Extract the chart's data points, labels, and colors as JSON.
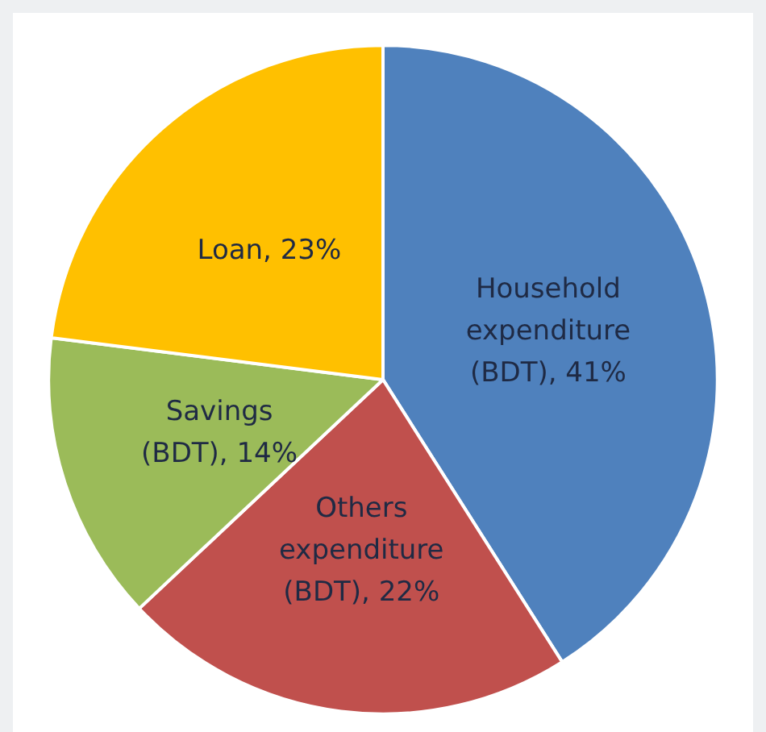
{
  "chart_data": {
    "type": "pie",
    "categories": [
      "Household expenditure (BDT)",
      "Others expenditure (BDT)",
      "Savings (BDT)",
      "Loan"
    ],
    "values": [
      41,
      22,
      14,
      23
    ],
    "value_labels": [
      ", 41%",
      ", 22%",
      ", 14%",
      ", 23%"
    ],
    "colors": [
      "#4f81bd",
      "#c0504d",
      "#9bbb59",
      "#ffc000"
    ],
    "legend": false
  }
}
